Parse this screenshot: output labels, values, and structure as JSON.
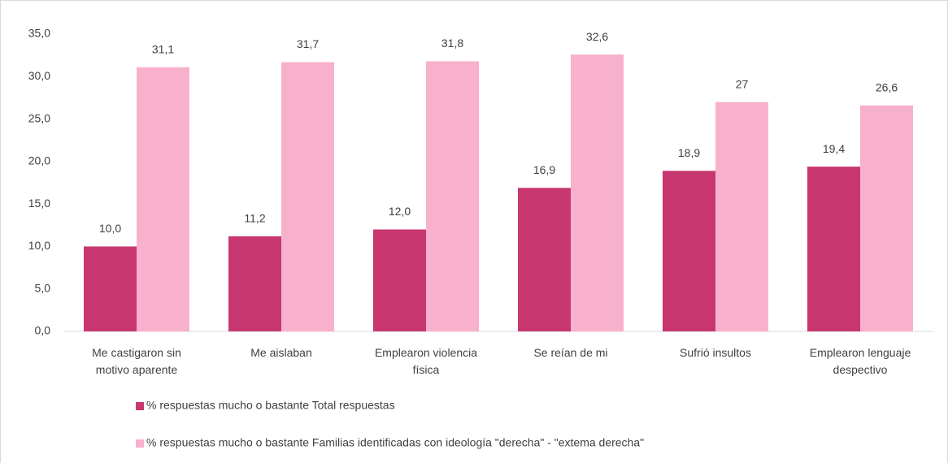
{
  "chart_data": {
    "type": "bar",
    "categories": [
      "Me castigaron sin\nmotivo aparente",
      "Me aislaban",
      "Emplearon violencia\nfísica",
      "Se reían de mi",
      "Sufrió insultos",
      "Emplearon lenguaje\ndespectivo"
    ],
    "series": [
      {
        "name": "% respuestas mucho o bastante Total respuestas",
        "color": "#c8376f",
        "values": [
          10.0,
          11.2,
          12.0,
          16.9,
          18.9,
          19.4
        ],
        "value_labels": [
          "10,0",
          "11,2",
          "12,0",
          "16,9",
          "18,9",
          "19,4"
        ]
      },
      {
        "name": "% respuestas mucho o bastante Familias identificadas con ideología \"derecha\" - \"extema derecha\"",
        "color": "#f8b1cd",
        "values": [
          31.1,
          31.7,
          31.8,
          32.6,
          27,
          26.6
        ],
        "value_labels": [
          "31,1",
          "31,7",
          "31,8",
          "32,6",
          "27",
          "26,6"
        ]
      }
    ],
    "ylim": [
      0,
      35
    ],
    "yticks": [
      {
        "value": 0,
        "label": "0,0"
      },
      {
        "value": 5,
        "label": "5,0"
      },
      {
        "value": 10,
        "label": "10,0"
      },
      {
        "value": 15,
        "label": "15,0"
      },
      {
        "value": 20,
        "label": "20,0"
      },
      {
        "value": 25,
        "label": "25,0"
      },
      {
        "value": 30,
        "label": "30,0"
      },
      {
        "value": 35,
        "label": "35,0"
      }
    ],
    "legend": "bottom"
  }
}
